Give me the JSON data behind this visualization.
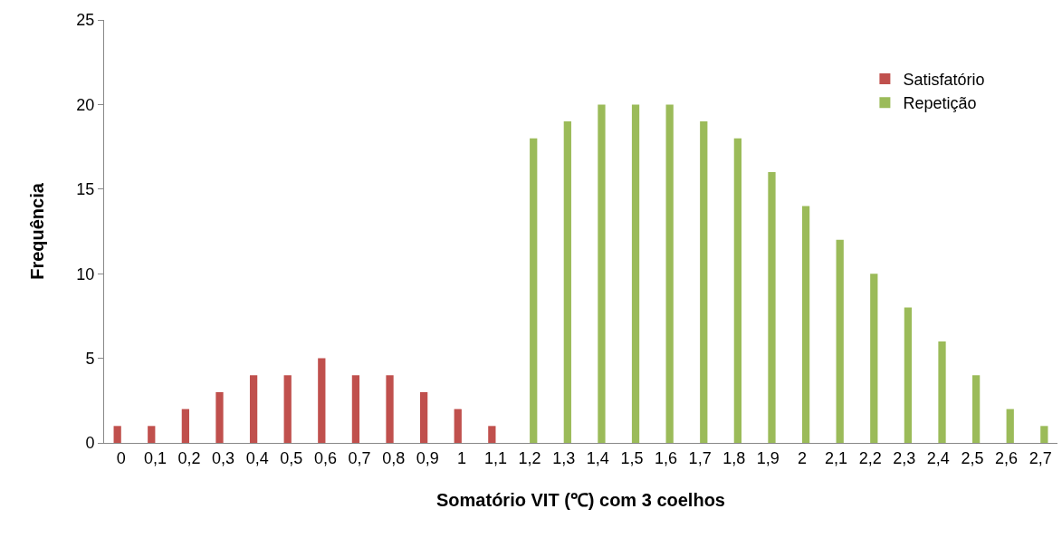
{
  "chart_data": {
    "type": "bar",
    "xlabel": "Somatório VIT (℃) com 3 coelhos",
    "ylabel": "Frequência",
    "categories": [
      "0",
      "0,1",
      "0,2",
      "0,3",
      "0,4",
      "0,5",
      "0,6",
      "0,7",
      "0,8",
      "0,9",
      "1",
      "1,1",
      "1,2",
      "1,3",
      "1,4",
      "1,5",
      "1,6",
      "1,7",
      "1,8",
      "1,9",
      "2",
      "2,1",
      "2,2",
      "2,3",
      "2,4",
      "2,5",
      "2,6",
      "2,7"
    ],
    "series": [
      {
        "name": "Satisfatório",
        "color": "#c0504d",
        "values": [
          1,
          1,
          2,
          3,
          4,
          4,
          5,
          4,
          4,
          3,
          2,
          1,
          null,
          null,
          null,
          null,
          null,
          null,
          null,
          null,
          null,
          null,
          null,
          null,
          null,
          null,
          null,
          null
        ]
      },
      {
        "name": "Repetição",
        "color": "#9bbb59",
        "values": [
          null,
          null,
          null,
          null,
          null,
          null,
          null,
          null,
          null,
          null,
          null,
          null,
          18,
          19,
          20,
          20,
          20,
          19,
          18,
          16,
          14,
          12,
          10,
          8,
          6,
          4,
          2,
          1
        ]
      }
    ],
    "ylim": [
      0,
      25
    ],
    "yticks": [
      0,
      5,
      10,
      15,
      20,
      25
    ],
    "legend": "top right"
  }
}
